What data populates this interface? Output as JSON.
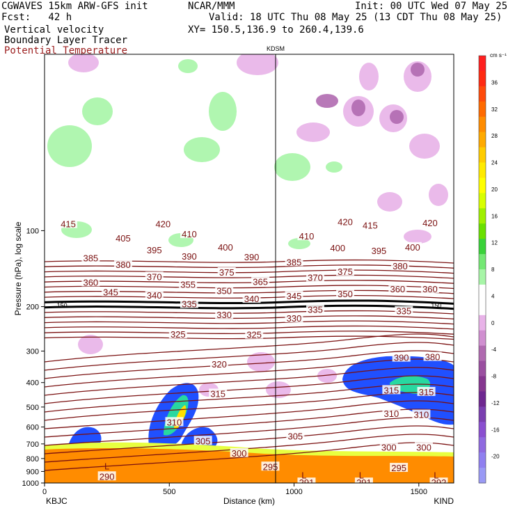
{
  "header": {
    "model": "CGWAVES 15km ARW-GFS init",
    "forecast": "Fcst:   42 h",
    "field1": "Vertical velocity",
    "field2": "Boundary Layer Tracer",
    "field3": "Potential Temperature",
    "org": "NCAR/MMM",
    "init": "Init: 00 UTC Wed 07 May 25",
    "valid": "Valid: 18 UTC Thu 08 May 25 (13 CDT Thu 08 May 25)",
    "xy": "XY= 150.5,136.9 to 260.4,139.6",
    "station_mid": "KDSM"
  },
  "colors": {
    "theta": "#7a1010",
    "grid_line": "#000000",
    "pos_low": "#a7f5a7",
    "neg_low": "#e8b3e8",
    "neg_mid": "#b06ab0",
    "bl_orange": "#ff8c00"
  },
  "chart_data": {
    "type": "contour-cross-section",
    "ylabel": "Pressure (hPa), log scale",
    "xlabel": "Distance (km)",
    "x_range": [
      0,
      1640
    ],
    "y_range_hPa": [
      1000,
      20
    ],
    "y_scale": "log",
    "x_ticks": [
      0,
      500,
      1000,
      1500
    ],
    "y_ticks": [
      100,
      200,
      300,
      400,
      500,
      600,
      700,
      800,
      900,
      1000
    ],
    "x_endpoints": {
      "left": "KBJC",
      "right": "KIND"
    },
    "mid_station": {
      "name": "KDSM",
      "x_km": 930
    },
    "tropopause_label": "150",
    "theta_labels": [
      {
        "t": "415",
        "x": 95,
        "p": 94
      },
      {
        "t": "420",
        "x": 475,
        "p": 94
      },
      {
        "t": "420",
        "x": 1205,
        "p": 92
      },
      {
        "t": "415",
        "x": 1305,
        "p": 95
      },
      {
        "t": "420",
        "x": 1545,
        "p": 93
      },
      {
        "t": "405",
        "x": 315,
        "p": 107
      },
      {
        "t": "410",
        "x": 580,
        "p": 103
      },
      {
        "t": "410",
        "x": 1050,
        "p": 105
      },
      {
        "t": "395",
        "x": 440,
        "p": 119
      },
      {
        "t": "400",
        "x": 725,
        "p": 116
      },
      {
        "t": "400",
        "x": 1175,
        "p": 117
      },
      {
        "t": "395",
        "x": 1340,
        "p": 120
      },
      {
        "t": "400",
        "x": 1475,
        "p": 116
      },
      {
        "t": "385",
        "x": 185,
        "p": 128
      },
      {
        "t": "390",
        "x": 580,
        "p": 126
      },
      {
        "t": "390",
        "x": 830,
        "p": 127
      },
      {
        "t": "385",
        "x": 1000,
        "p": 133
      },
      {
        "t": "380",
        "x": 315,
        "p": 136
      },
      {
        "t": "380",
        "x": 1425,
        "p": 138
      },
      {
        "t": "375",
        "x": 730,
        "p": 146
      },
      {
        "t": "375",
        "x": 1205,
        "p": 145
      },
      {
        "t": "370",
        "x": 440,
        "p": 152
      },
      {
        "t": "370",
        "x": 1085,
        "p": 153
      },
      {
        "t": "360",
        "x": 185,
        "p": 160
      },
      {
        "t": "355",
        "x": 575,
        "p": 163
      },
      {
        "t": "365",
        "x": 865,
        "p": 159
      },
      {
        "t": "345",
        "x": 265,
        "p": 175
      },
      {
        "t": "340",
        "x": 440,
        "p": 180
      },
      {
        "t": "350",
        "x": 720,
        "p": 173
      },
      {
        "t": "340",
        "x": 830,
        "p": 186
      },
      {
        "t": "345",
        "x": 1000,
        "p": 181
      },
      {
        "t": "350",
        "x": 1205,
        "p": 178
      },
      {
        "t": "360",
        "x": 1415,
        "p": 170
      },
      {
        "t": "360",
        "x": 1545,
        "p": 170
      },
      {
        "t": "335",
        "x": 580,
        "p": 195
      },
      {
        "t": "335",
        "x": 1085,
        "p": 205
      },
      {
        "t": "335",
        "x": 1440,
        "p": 208
      },
      {
        "t": "330",
        "x": 720,
        "p": 215
      },
      {
        "t": "330",
        "x": 1000,
        "p": 222
      },
      {
        "t": "325",
        "x": 535,
        "p": 257
      },
      {
        "t": "325",
        "x": 840,
        "p": 258
      },
      {
        "t": "320",
        "x": 700,
        "p": 338
      },
      {
        "t": "315",
        "x": 695,
        "p": 442
      },
      {
        "t": "315",
        "x": 1390,
        "p": 428
      },
      {
        "t": "315",
        "x": 1530,
        "p": 435
      },
      {
        "t": "310",
        "x": 520,
        "p": 573
      },
      {
        "t": "310",
        "x": 1390,
        "p": 530
      },
      {
        "t": "310",
        "x": 1510,
        "p": 535
      },
      {
        "t": "305",
        "x": 635,
        "p": 680
      },
      {
        "t": "305",
        "x": 1005,
        "p": 652
      },
      {
        "t": "300",
        "x": 780,
        "p": 760
      },
      {
        "t": "300",
        "x": 1380,
        "p": 720
      },
      {
        "t": "300",
        "x": 1520,
        "p": 720
      },
      {
        "t": "295",
        "x": 905,
        "p": 860
      },
      {
        "t": "295",
        "x": 1420,
        "p": 870
      },
      {
        "t": "290",
        "x": 250,
        "p": 940
      },
      {
        "t": "291",
        "x": 1050,
        "p": 995
      },
      {
        "t": "291",
        "x": 1280,
        "p": 995
      },
      {
        "t": "292",
        "x": 1580,
        "p": 995
      },
      {
        "t": "390",
        "x": 1430,
        "p": 318
      },
      {
        "t": "380",
        "x": 1555,
        "p": 316
      }
    ],
    "low_markers": [
      {
        "t": "L",
        "x": 250,
        "p": 855
      },
      {
        "t": "L",
        "x": 1040,
        "p": 930
      },
      {
        "t": "L",
        "x": 1270,
        "p": 930
      },
      {
        "t": "L",
        "x": 1570,
        "p": 930
      }
    ],
    "colorbar": {
      "unit": "cm s⁻¹",
      "labels": [
        "36",
        "32",
        "28",
        "24",
        "20",
        "16",
        "12",
        "8",
        "4",
        "0",
        "-4",
        "-8",
        "-12",
        "-16",
        "-20"
      ],
      "label_values": [
        36,
        32,
        28,
        24,
        20,
        16,
        12,
        8,
        4,
        0,
        -4,
        -8,
        -12,
        -16,
        -20
      ],
      "colors": [
        "#ff1f1f",
        "#ff2a12",
        "#ff4a0a",
        "#ff6a00",
        "#ff8c00",
        "#ffaa00",
        "#ffcc00",
        "#ffea00",
        "#ffff00",
        "#d8ff00",
        "#a0f000",
        "#6ae000",
        "#3ad23a",
        "#74e874",
        "#a7f5a7",
        "#ffffff",
        "#ffffff",
        "#e8b3e8",
        "#d08fd0",
        "#b06ab0",
        "#9a4fa0",
        "#85368f",
        "#6e2790",
        "#7a3fb0",
        "#8a4fd0",
        "#8f6ae0",
        "#9080f0",
        "#9a9af5"
      ]
    }
  }
}
